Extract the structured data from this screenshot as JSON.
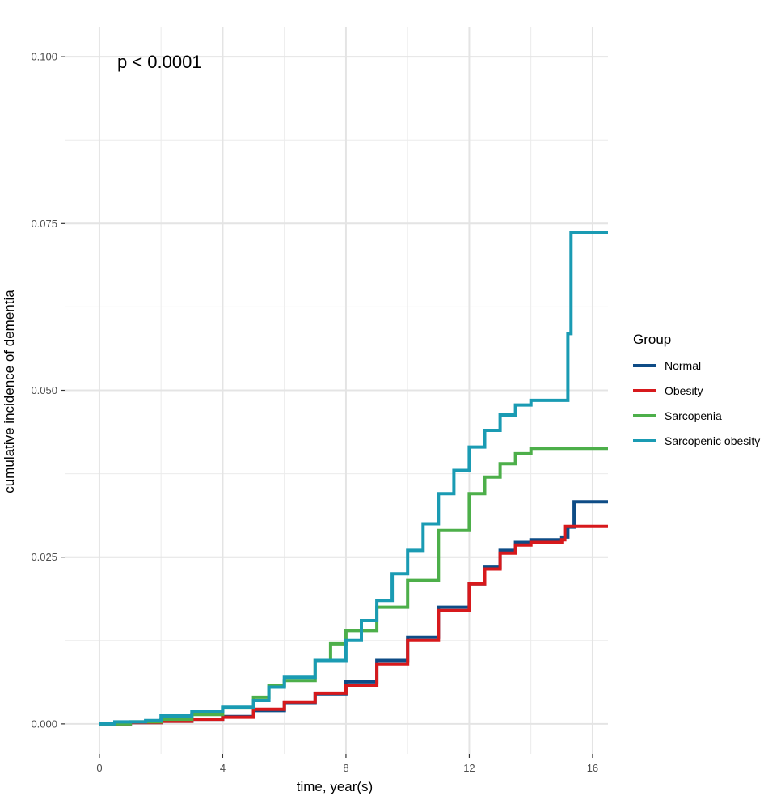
{
  "chart_data": {
    "type": "line",
    "step": true,
    "xlabel": "time, year(s)",
    "ylabel": "cumulative incidence of dementia",
    "xlim": [
      -1.1,
      16.5
    ],
    "ylim": [
      -0.0045,
      0.1045
    ],
    "xticks": [
      0,
      4,
      8,
      12,
      16
    ],
    "xtick_labels": [
      "0",
      "4",
      "8",
      "12",
      "16"
    ],
    "yticks": [
      0.0,
      0.025,
      0.05,
      0.075,
      0.1
    ],
    "ytick_labels": [
      "0.000",
      "0.025",
      "0.050",
      "0.075",
      "0.100"
    ],
    "grid": true,
    "annotation": "p < 0.0001",
    "legend": {
      "title": "Group",
      "position": "right"
    },
    "series": [
      {
        "name": "Normal",
        "color": "#0E4C86",
        "x": [
          0,
          1,
          2,
          3,
          4,
          5,
          6,
          7,
          8,
          9,
          10,
          11,
          12,
          12.5,
          13,
          13.5,
          14,
          15,
          15.2,
          15.4,
          16.5
        ],
        "y": [
          0.0,
          0.0002,
          0.0004,
          0.0007,
          0.0011,
          0.002,
          0.0032,
          0.0045,
          0.0063,
          0.0095,
          0.013,
          0.0175,
          0.021,
          0.0235,
          0.026,
          0.0272,
          0.0276,
          0.028,
          0.0295,
          0.0333,
          0.0333
        ]
      },
      {
        "name": "Obesity",
        "color": "#D7191C",
        "x": [
          0,
          1,
          2,
          3,
          4,
          5,
          6,
          7,
          8,
          9,
          10,
          11,
          12,
          12.5,
          13,
          13.5,
          14,
          15,
          15.1,
          16.5
        ],
        "y": [
          0.0,
          0.0002,
          0.0004,
          0.0007,
          0.001,
          0.0022,
          0.0033,
          0.0046,
          0.0058,
          0.009,
          0.0125,
          0.017,
          0.021,
          0.0232,
          0.0256,
          0.0268,
          0.0272,
          0.0276,
          0.0296,
          0.0296
        ]
      },
      {
        "name": "Sarcopenia",
        "color": "#4DAF4A",
        "x": [
          0,
          1,
          2,
          3,
          4,
          5,
          5.5,
          6,
          7,
          7.5,
          8,
          9,
          10,
          11,
          12,
          12.5,
          13,
          13.5,
          14,
          16.5
        ],
        "y": [
          0.0,
          0.0003,
          0.0007,
          0.0014,
          0.0024,
          0.004,
          0.0058,
          0.0065,
          0.0095,
          0.012,
          0.014,
          0.0175,
          0.0215,
          0.029,
          0.0345,
          0.037,
          0.039,
          0.0405,
          0.0413,
          0.0413
        ]
      },
      {
        "name": "Sarcopenic obesity",
        "color": "#1A9BB3",
        "x": [
          0,
          0.5,
          1.5,
          2,
          3,
          4,
          5,
          5.5,
          6,
          7,
          8,
          8.5,
          9,
          9.5,
          10,
          10.5,
          11,
          11.5,
          12,
          12.5,
          13,
          13.5,
          14,
          15.1,
          15.2,
          15.3,
          16.5
        ],
        "y": [
          0.0,
          0.0003,
          0.0005,
          0.0012,
          0.0018,
          0.0025,
          0.0035,
          0.0055,
          0.007,
          0.0095,
          0.0125,
          0.0155,
          0.0185,
          0.0225,
          0.026,
          0.03,
          0.0345,
          0.038,
          0.0415,
          0.044,
          0.0463,
          0.0478,
          0.0485,
          0.0485,
          0.0585,
          0.0737,
          0.0737
        ]
      }
    ]
  }
}
